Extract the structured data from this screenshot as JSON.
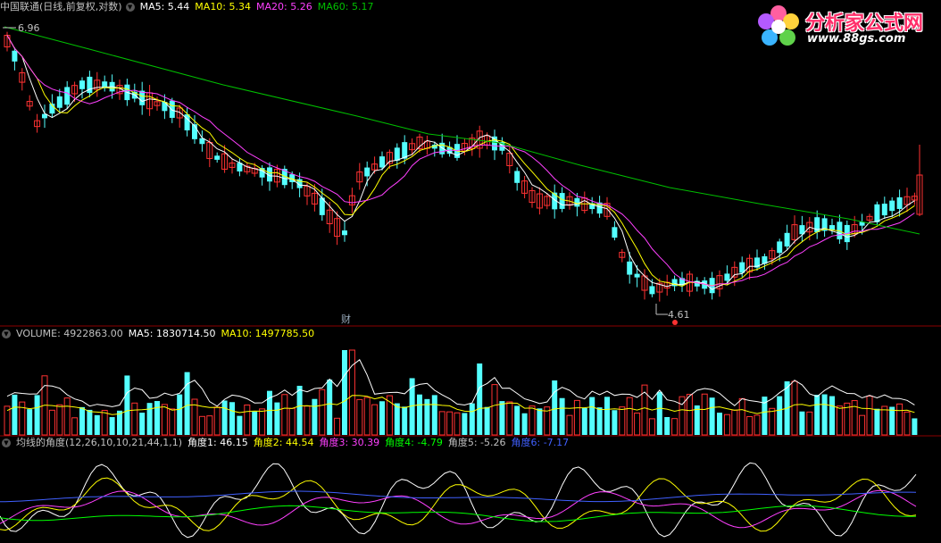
{
  "main_panel": {
    "title": "中国联通(日线,前复权,对数)",
    "ma5": "MA5: 5.44",
    "ma10": "MA10: 5.34",
    "ma20": "MA20: 5.26",
    "ma60": "MA60: 5.17",
    "high_marker": "6.96",
    "low_marker": "4.61",
    "event_label": "财",
    "colors": {
      "up": "#ff3232",
      "down": "#54ffff",
      "ma5": "#ffffff",
      "ma10": "#ffff00",
      "ma20": "#ff40ff",
      "ma60": "#00c000"
    }
  },
  "volume_panel": {
    "label": "VOLUME: 4922863.00",
    "ma5": "MA5: 1830714.50",
    "ma10": "MA10: 1497785.50"
  },
  "angle_panel": {
    "title": "均线的角度(12,26,10,10,21,44,1,1)",
    "a1": "角度1: 46.15",
    "a2": "角度2: 44.54",
    "a3": "角度3: 30.39",
    "a4": "角度4: -4.79",
    "a5": "角度5: -5.26",
    "a6": "角度6: -7.17",
    "colors": {
      "a1": "#ffffff",
      "a2": "#ffff00",
      "a3": "#ff40ff",
      "a4": "#00ff00",
      "a5": "#c0c0c0",
      "a6": "#4060ff"
    }
  },
  "logo": {
    "brand": "分析家公式网",
    "url": "www.88gs.com"
  },
  "icons": [
    "collapse-toggle-icon",
    "flower-logo-icon"
  ]
}
